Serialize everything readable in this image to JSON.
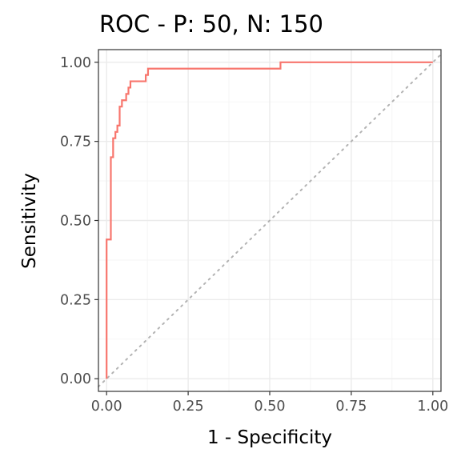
{
  "chart_data": {
    "type": "line",
    "title": "ROC - P: 50, N: 150",
    "xlabel": "1 - Specificity",
    "ylabel": "Sensitivity",
    "xlim": [
      -0.025,
      1.025
    ],
    "ylim": [
      -0.04,
      1.04
    ],
    "x_ticks": [
      0,
      0.25,
      0.5,
      0.75,
      1
    ],
    "x_tick_labels": [
      "0.00",
      "0.25",
      "0.50",
      "0.75",
      "1.00"
    ],
    "y_ticks": [
      0,
      0.25,
      0.5,
      0.75,
      1
    ],
    "y_tick_labels": [
      "0.00",
      "0.25",
      "0.50",
      "0.75",
      "1.00"
    ],
    "grid": true,
    "legend": "none",
    "diagonal_reference": true,
    "colors": {
      "roc": "#F8766D",
      "diagonal": "#b3b3b3"
    },
    "series": [
      {
        "x": [
          0,
          0,
          0,
          0.013,
          0.013,
          0.02,
          0.02,
          0.027,
          0.027,
          0.033,
          0.033,
          0.04,
          0.04,
          0.047,
          0.047,
          0.06,
          0.06,
          0.067,
          0.067,
          0.073,
          0.073,
          0.08,
          0.08,
          0.12,
          0.12,
          0.127,
          0.127,
          0.533,
          0.533,
          1
        ],
        "y": [
          0,
          0.44,
          0.44,
          0.44,
          0.7,
          0.7,
          0.76,
          0.76,
          0.78,
          0.78,
          0.8,
          0.8,
          0.86,
          0.86,
          0.88,
          0.88,
          0.9,
          0.9,
          0.92,
          0.92,
          0.94,
          0.94,
          0.94,
          0.94,
          0.96,
          0.96,
          0.98,
          0.98,
          1.0,
          1.0
        ]
      }
    ]
  }
}
